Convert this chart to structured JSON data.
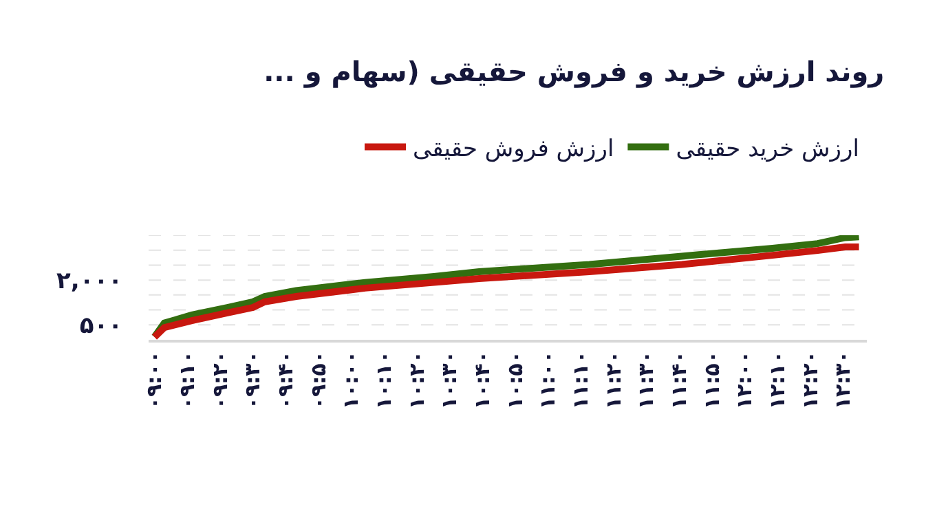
{
  "chart_data": {
    "type": "line",
    "title": "روند ارزش خرید و فروش حقیقی (سهام و ...",
    "legend": "top right",
    "grid": "y",
    "marker": "none",
    "line_style": "solid",
    "xlim": [
      8.97,
      12.62
    ],
    "xticks": [
      {
        "value": 9,
        "label": "۰۹:۰۰"
      },
      {
        "value": 9.1667,
        "label": "۰۹:۱۰"
      },
      {
        "value": 9.3333,
        "label": "۰۹:۲۰"
      },
      {
        "value": 9.5,
        "label": "۰۹:۳۰"
      },
      {
        "value": 9.6667,
        "label": "۰۹:۴۰"
      },
      {
        "value": 9.8333,
        "label": "۰۹:۵۰"
      },
      {
        "value": 10,
        "label": "۱۰:۰۰"
      },
      {
        "value": 10.1667,
        "label": "۱۰:۱۰"
      },
      {
        "value": 10.3333,
        "label": "۱۰:۲۰"
      },
      {
        "value": 10.5,
        "label": "۱۰:۳۰"
      },
      {
        "value": 10.6667,
        "label": "۱۰:۴۰"
      },
      {
        "value": 10.8333,
        "label": "۱۰:۵۰"
      },
      {
        "value": 11,
        "label": "۱۱:۰۰"
      },
      {
        "value": 11.1667,
        "label": "۱۱:۱۰"
      },
      {
        "value": 11.3333,
        "label": "۱۱:۲۰"
      },
      {
        "value": 11.5,
        "label": "۱۱:۳۰"
      },
      {
        "value": 11.6667,
        "label": "۱۱:۴۰"
      },
      {
        "value": 11.8333,
        "label": "۱۱:۵۰"
      },
      {
        "value": 12,
        "label": "۱۲:۰۰"
      },
      {
        "value": 12.1667,
        "label": "۱۲:۱۰"
      },
      {
        "value": 12.3333,
        "label": "۱۲:۲۰"
      },
      {
        "value": 12.5,
        "label": "۱۲:۳۰"
      }
    ],
    "ylim": [
      0,
      3500
    ],
    "yticks": [
      {
        "value": 500,
        "label": "۵۰۰"
      },
      {
        "value": 1000,
        "label": null
      },
      {
        "value": 1500,
        "label": null
      },
      {
        "value": 2000,
        "label": "۲,۰۰۰"
      },
      {
        "value": 2500,
        "label": null
      },
      {
        "value": 3000,
        "label": null
      },
      {
        "value": 3500,
        "label": null
      }
    ],
    "x": [
      9.0,
      9.05,
      9.19,
      9.37,
      9.5,
      9.56,
      9.72,
      10.07,
      10.42,
      10.65,
      11.21,
      11.68,
      12.14,
      12.37,
      12.51,
      12.58
    ],
    "series": [
      {
        "name": "ارزش خرید حقیقی",
        "color": "#336e10",
        "values": [
          100,
          560,
          830,
          1080,
          1270,
          1450,
          1650,
          1920,
          2120,
          2280,
          2520,
          2800,
          3060,
          3220,
          3420,
          3450
        ]
      },
      {
        "name": "ارزش فروش حقیقی",
        "color": "#c8180f",
        "values": [
          90,
          410,
          640,
          900,
          1080,
          1270,
          1450,
          1730,
          1920,
          2050,
          2280,
          2520,
          2830,
          2990,
          3110,
          3110
        ]
      }
    ]
  }
}
